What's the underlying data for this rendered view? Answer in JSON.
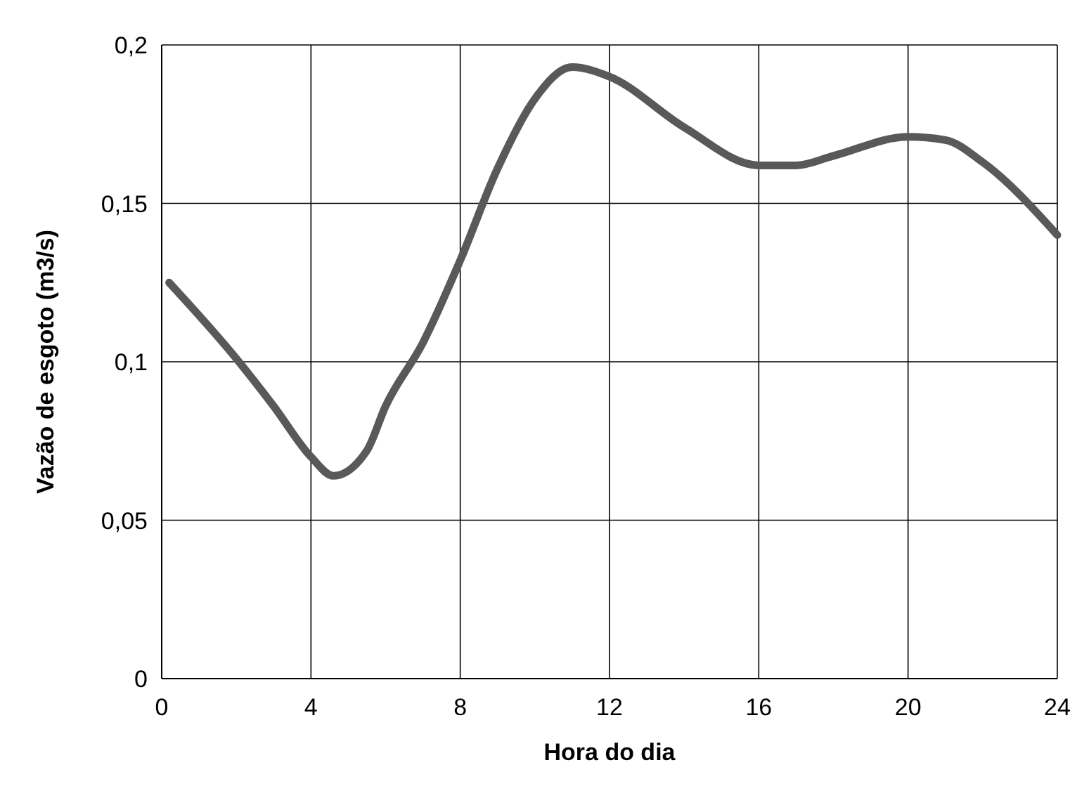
{
  "chart_data": {
    "type": "line",
    "xlabel": "Hora do dia",
    "ylabel": "Vazão de esgoto (m3/s)",
    "xlim": [
      0,
      24
    ],
    "xticks": [
      0,
      4,
      8,
      12,
      16,
      20,
      24
    ],
    "ylim": [
      0,
      0.2
    ],
    "yticks": [
      {
        "value": 0,
        "label": "0"
      },
      {
        "value": 0.05,
        "label": "0,05"
      },
      {
        "value": 0.1,
        "label": "0,1"
      },
      {
        "value": 0.15,
        "label": "0,15"
      },
      {
        "value": 0.2,
        "label": "0,2"
      }
    ],
    "grid": true,
    "marker": "none",
    "line_style": "solid",
    "series": [
      {
        "color": "#595959",
        "x": [
          0.2,
          2,
          3,
          4,
          4.6,
          5.5,
          6,
          7,
          8,
          9,
          10,
          11,
          12,
          14,
          16,
          17,
          18,
          20,
          21,
          22,
          24
        ],
        "values": [
          0.125,
          0.101,
          0.086,
          0.07,
          0.064,
          0.072,
          0.086,
          0.106,
          0.132,
          0.161,
          0.183,
          0.193,
          0.19,
          0.174,
          0.162,
          0.162,
          0.165,
          0.171,
          0.17,
          0.163,
          0.14
        ]
      }
    ]
  }
}
